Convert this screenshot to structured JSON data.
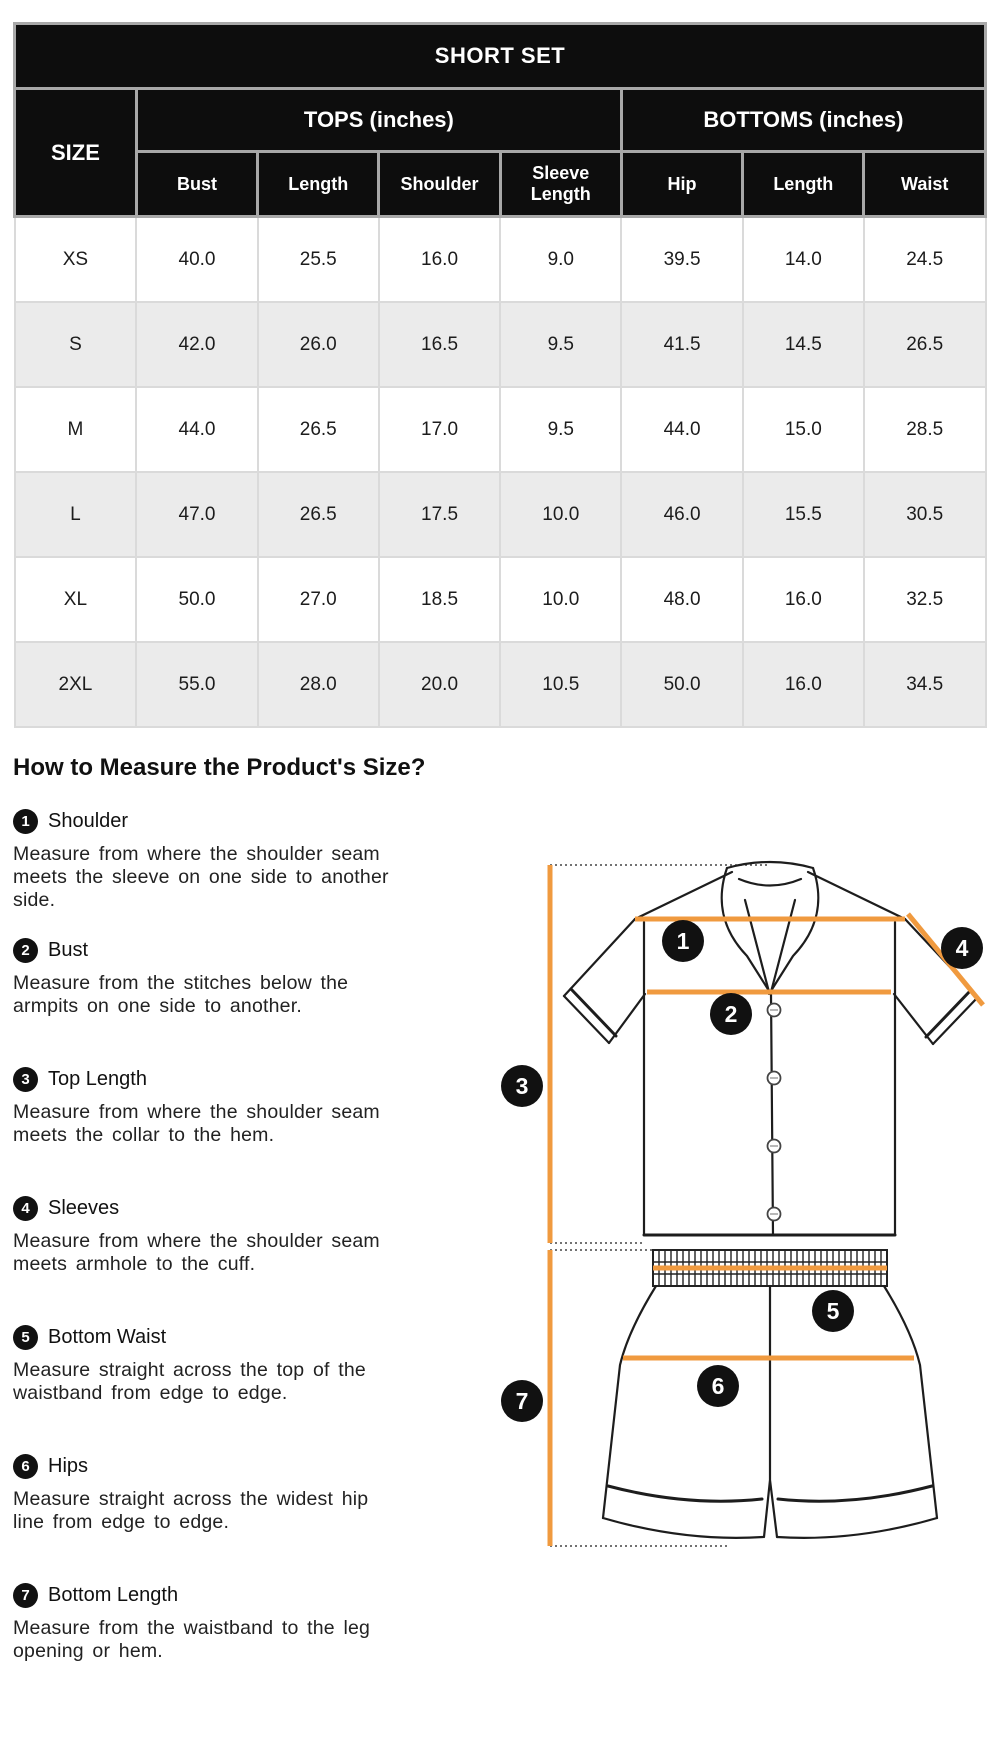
{
  "colors": {
    "accent": "#F09A3F",
    "table_black": "#0D0D0D",
    "row_alt": "#EBEBEB"
  },
  "table": {
    "title": "SHORT SET",
    "size_header": "SIZE",
    "group_headers": [
      "TOPS (inches)",
      "BOTTOMS (inches)"
    ],
    "columns": [
      "Bust",
      "Length",
      "Shoulder",
      "Sleeve Length",
      "Hip",
      "Length",
      "Waist"
    ],
    "rows": [
      {
        "size": "XS",
        "values": [
          "40.0",
          "25.5",
          "16.0",
          "9.0",
          "39.5",
          "14.0",
          "24.5"
        ]
      },
      {
        "size": "S",
        "values": [
          "42.0",
          "26.0",
          "16.5",
          "9.5",
          "41.5",
          "14.5",
          "26.5"
        ]
      },
      {
        "size": "M",
        "values": [
          "44.0",
          "26.5",
          "17.0",
          "9.5",
          "44.0",
          "15.0",
          "28.5"
        ]
      },
      {
        "size": "L",
        "values": [
          "47.0",
          "26.5",
          "17.5",
          "10.0",
          "46.0",
          "15.5",
          "30.5"
        ]
      },
      {
        "size": "XL",
        "values": [
          "50.0",
          "27.0",
          "18.5",
          "10.0",
          "48.0",
          "16.0",
          "32.5"
        ]
      },
      {
        "size": "2XL",
        "values": [
          "55.0",
          "28.0",
          "20.0",
          "10.5",
          "50.0",
          "16.0",
          "34.5"
        ]
      }
    ]
  },
  "howto": {
    "heading": "How to Measure the Product's Size?",
    "items": [
      {
        "num": "1",
        "title": "Shoulder",
        "desc": "Measure from where the shoulder seam\nmeets the sleeve on one side to another\nside."
      },
      {
        "num": "2",
        "title": "Bust",
        "desc": "Measure from the stitches below the\narmpits on one side to another."
      },
      {
        "num": "3",
        "title": "Top Length",
        "desc": "Measure from where the shoulder seam\nmeets the collar to the hem."
      },
      {
        "num": "4",
        "title": "Sleeves",
        "desc": "Measure from where the shoulder seam\nmeets armhole to the cuff."
      },
      {
        "num": "5",
        "title": "Bottom Waist",
        "desc": "Measure straight across the top of the\nwaistband from edge to edge."
      },
      {
        "num": "6",
        "title": "Hips",
        "desc": "Measure straight across the widest hip\nline from edge to edge."
      },
      {
        "num": "7",
        "title": "Bottom Length",
        "desc": "Measure from the waistband to the leg\nopening or hem."
      }
    ]
  },
  "diagram": {
    "markers": {
      "m1": "1",
      "m2": "2",
      "m3": "3",
      "m4": "4",
      "m5": "5",
      "m6": "6",
      "m7": "7"
    }
  }
}
